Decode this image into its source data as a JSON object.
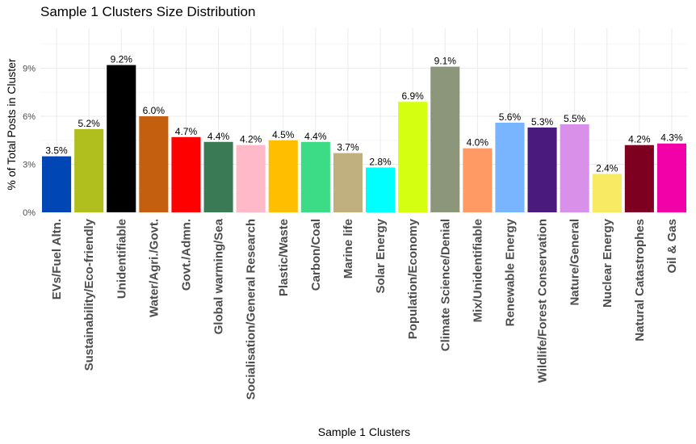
{
  "chart_data": {
    "type": "bar",
    "title": "Sample 1 Clusters Size Distribution",
    "xlabel": "Sample 1 Clusters",
    "ylabel": "% of Total Posts in Cluster",
    "ylim": [
      0,
      11.5
    ],
    "yticks": [
      0,
      3,
      6,
      9
    ],
    "ytick_labels": [
      "0%",
      "3%",
      "6%",
      "9%"
    ],
    "grid": true,
    "categories": [
      "EVs/Fuel Altn.",
      "Sustainability/Eco-friendly",
      "Unidentifiable",
      "Water/Agri./Govt.",
      "Govt./Admn.",
      "Global warming/Sea",
      "Socialisation/General Research",
      "Plastic/Waste",
      "Carbon/Coal",
      "Marine life",
      "Solar Energy",
      "Population/Economy",
      "Climate Science/Denial",
      "Mix/Unidentifiable",
      "Renewable Energy",
      "Wildlife/Forest Conservation",
      "Nature/General",
      "Nuclear Energy",
      "Natural Catastrophes",
      "Oil & Gas"
    ],
    "values": [
      3.5,
      5.2,
      9.2,
      6.0,
      4.7,
      4.4,
      4.2,
      4.5,
      4.4,
      3.7,
      2.8,
      6.9,
      9.1,
      4.0,
      5.6,
      5.3,
      5.5,
      2.4,
      4.2,
      4.3
    ],
    "data_labels": [
      "3.5%",
      "5.2%",
      "9.2%",
      "6.0%",
      "4.7%",
      "4.4%",
      "4.2%",
      "4.5%",
      "4.4%",
      "3.7%",
      "2.8%",
      "6.9%",
      "9.1%",
      "4.0%",
      "5.6%",
      "5.3%",
      "5.5%",
      "2.4%",
      "4.2%",
      "4.3%"
    ],
    "colors": [
      "#0046b4",
      "#b0be1e",
      "#000000",
      "#c45f10",
      "#ff0000",
      "#3a7a55",
      "#ffb9c8",
      "#ffbe00",
      "#3cdc86",
      "#c0b080",
      "#00ffff",
      "#d4ff10",
      "#8c967a",
      "#ff9a64",
      "#78b4ff",
      "#4b1a7d",
      "#d990e8",
      "#f8ea62",
      "#7d0020",
      "#f200a8"
    ]
  }
}
